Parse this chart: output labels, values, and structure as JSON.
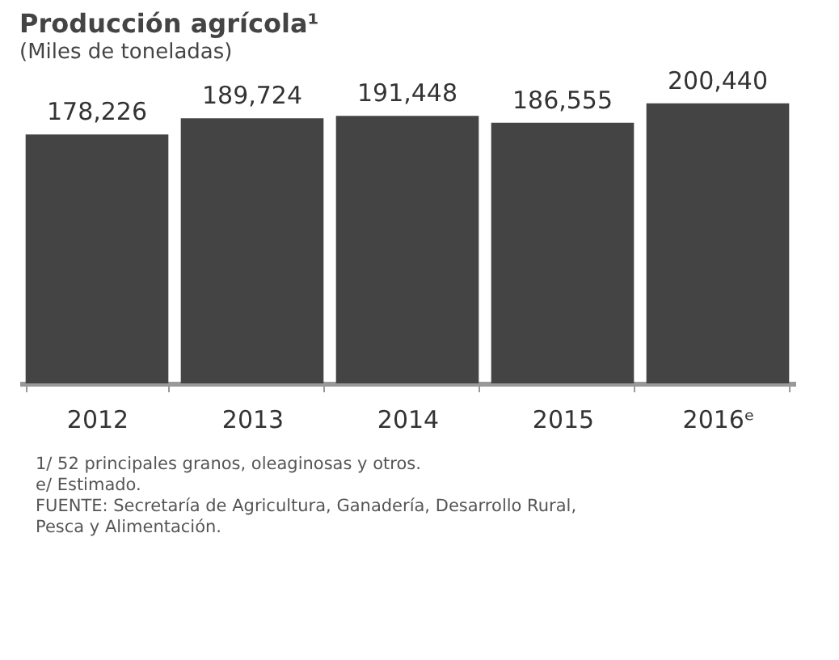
{
  "chart_data": {
    "type": "bar",
    "title": "Producción agrícola¹",
    "subtitle": "(Miles de toneladas)",
    "categories": [
      "2012",
      "2013",
      "2014",
      "2015",
      "2016ᵉ"
    ],
    "values": [
      178226,
      189724,
      191448,
      186555,
      200440
    ],
    "value_labels": [
      "178,226",
      "189,724",
      "191,448",
      "186,555",
      "200,440"
    ],
    "color": "#444444",
    "tick_labels": "x",
    "grid": false,
    "annotations": [
      "1/ 52 principales granos, oleaginosas y otros.",
      "e/ Estimado.",
      "FUENTE: Secretaría de Agricultura, Ganadería, Desarrollo Rural,",
      "Pesca y Alimentación."
    ]
  }
}
